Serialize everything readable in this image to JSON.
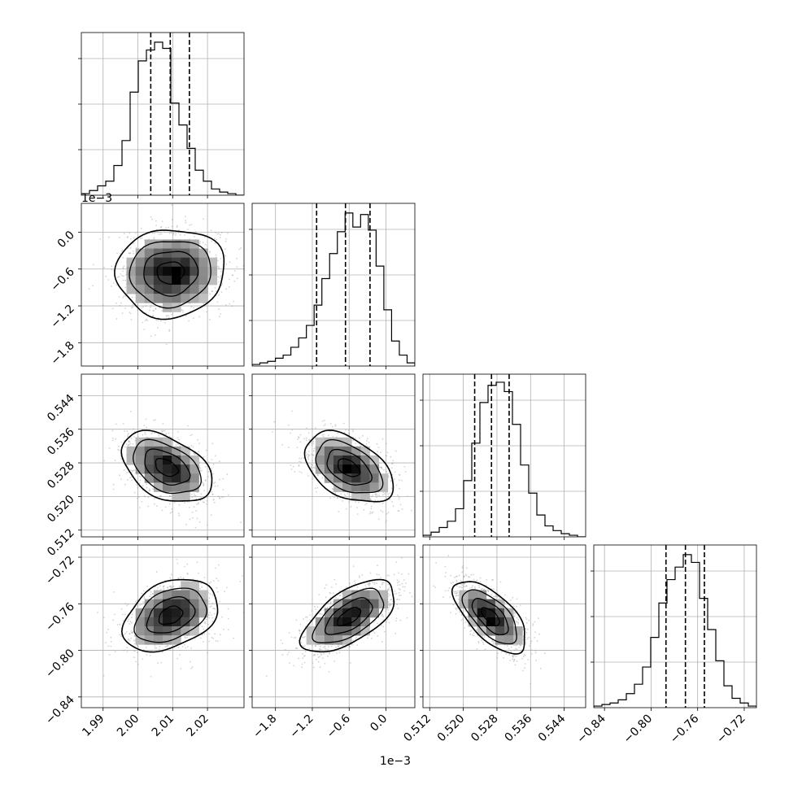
{
  "chart_data": {
    "type": "corner",
    "title": "",
    "dimensions": [
      {
        "xlim": [
          1.98375,
          2.0305
        ],
        "ticks": [
          1.99,
          2.0,
          2.01,
          2.02
        ],
        "tick_labels": [
          "1.99",
          "2.00",
          "2.01",
          "2.02"
        ],
        "offset_label": ""
      },
      {
        "xlim": [
          -2.18,
          0.47
        ],
        "ticks": [
          -1.8,
          -1.2,
          -0.6,
          0.0
        ],
        "tick_labels": [
          "−1.8",
          "−1.2",
          "−0.6",
          "0.0"
        ],
        "offset_label": "1e−3"
      },
      {
        "xlim": [
          0.5104,
          0.5491
        ],
        "ticks": [
          0.512,
          0.52,
          0.528,
          0.536,
          0.544
        ],
        "tick_labels": [
          "0.512",
          "0.520",
          "0.528",
          "0.536",
          "0.544"
        ],
        "offset_label": ""
      },
      {
        "xlim": [
          -0.8492,
          -0.7095
        ],
        "ticks": [
          -0.84,
          -0.8,
          -0.76,
          -0.72
        ],
        "tick_labels": [
          "−0.84",
          "−0.80",
          "−0.76",
          "−0.72"
        ],
        "offset_label": ""
      }
    ],
    "quantiles": [
      [
        2.0037,
        2.0093,
        2.0148
      ],
      [
        -1.13,
        -0.66,
        -0.26
      ],
      [
        0.5227,
        0.5267,
        0.5309
      ],
      [
        -0.7872,
        -0.7705,
        -0.7542
      ]
    ],
    "histograms": [
      {
        "values": [
          0.01,
          0.03,
          0.06,
          0.09,
          0.19,
          0.35,
          0.66,
          0.86,
          0.93,
          0.98,
          0.94,
          0.59,
          0.45,
          0.3,
          0.16,
          0.09,
          0.04,
          0.02,
          0.01,
          0.0
        ]
      },
      {
        "values": [
          0.01,
          0.02,
          0.03,
          0.05,
          0.07,
          0.12,
          0.18,
          0.26,
          0.39,
          0.56,
          0.72,
          0.86,
          0.98,
          0.89,
          0.97,
          0.87,
          0.64,
          0.36,
          0.16,
          0.07,
          0.02
        ]
      },
      {
        "values": [
          0.01,
          0.03,
          0.06,
          0.1,
          0.18,
          0.36,
          0.6,
          0.86,
          0.97,
          0.99,
          0.93,
          0.72,
          0.46,
          0.28,
          0.14,
          0.07,
          0.04,
          0.02,
          0.01,
          0.0
        ]
      },
      {
        "values": [
          0.01,
          0.02,
          0.03,
          0.05,
          0.09,
          0.15,
          0.26,
          0.45,
          0.67,
          0.82,
          0.9,
          0.98,
          0.93,
          0.7,
          0.5,
          0.3,
          0.14,
          0.06,
          0.03,
          0.01
        ]
      }
    ],
    "pairs": [
      {
        "x": 0,
        "y": 1,
        "mean": [
          2.0094,
          -0.66
        ],
        "std": [
          0.0078,
          0.36
        ],
        "corr": 0.05
      },
      {
        "x": 0,
        "y": 2,
        "mean": [
          2.0082,
          0.5269
        ],
        "std": [
          0.0065,
          0.0042
        ],
        "corr": -0.42
      },
      {
        "x": 1,
        "y": 2,
        "mean": [
          -0.61,
          0.5268
        ],
        "std": [
          0.36,
          0.0042
        ],
        "corr": -0.45
      },
      {
        "x": 0,
        "y": 3,
        "mean": [
          2.0094,
          -0.77
        ],
        "std": [
          0.0068,
          0.0155
        ],
        "corr": 0.35
      },
      {
        "x": 1,
        "y": 3,
        "mean": [
          -0.6,
          -0.771
        ],
        "std": [
          0.38,
          0.0155
        ],
        "corr": 0.62
      },
      {
        "x": 2,
        "y": 3,
        "mean": [
          0.5265,
          -0.771
        ],
        "std": [
          0.0043,
          0.0155
        ],
        "corr": -0.65
      }
    ],
    "contour_sigmas": [
      0.5,
      1.0,
      1.5,
      2.0
    ],
    "grid": true,
    "colors": {
      "hist_line": "#000000",
      "quantile_line": "#000000",
      "contour": "#000000",
      "points": "#9e9e9e",
      "grid": "#b0b0b0"
    }
  }
}
